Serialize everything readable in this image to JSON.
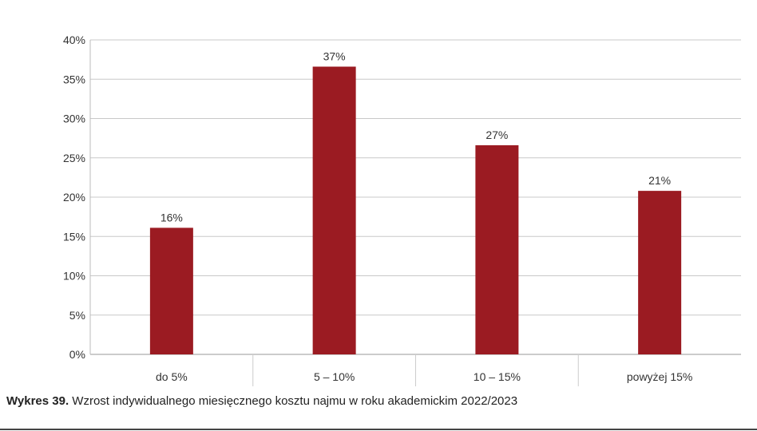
{
  "caption": {
    "label": "Wykres 39.",
    "text": "Wzrost indywidualnego miesięcznego kosztu najmu w roku akademickim 2022/2023"
  },
  "chart_data": {
    "type": "bar",
    "categories": [
      "do 5%",
      "5 – 10%",
      "10 – 15%",
      "powyżej 15%"
    ],
    "values": [
      16,
      37,
      27,
      21
    ],
    "data_labels": [
      "16%",
      "37%",
      "27%",
      "21%"
    ],
    "bar_values_plotted": [
      16.1,
      36.6,
      26.6,
      20.8
    ],
    "title": "",
    "xlabel": "",
    "ylabel": "",
    "ylim": [
      0,
      40
    ],
    "yticks": [
      0,
      5,
      10,
      15,
      20,
      25,
      30,
      35,
      40
    ],
    "ytick_labels": [
      "0%",
      "5%",
      "10%",
      "15%",
      "20%",
      "25%",
      "30%",
      "35%",
      "40%"
    ],
    "grid": true,
    "legend": "none",
    "bar_color": "#9b1b22",
    "grid_color": "#c8c8c8"
  }
}
